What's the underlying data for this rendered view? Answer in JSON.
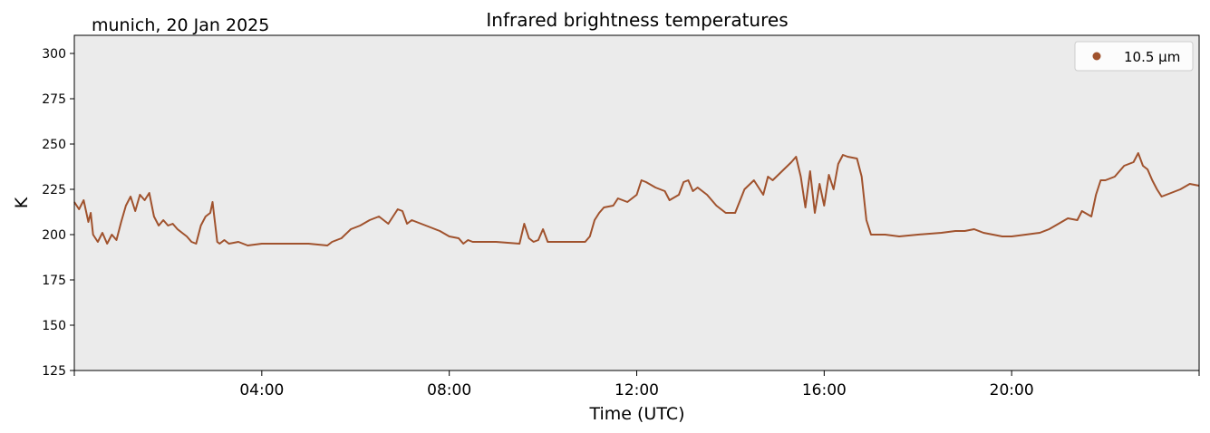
{
  "chart_data": {
    "type": "line",
    "title": "Infrared brightness temperatures",
    "subtitle": "munich, 20 Jan 2025",
    "xlabel": "Time (UTC)",
    "ylabel": "K",
    "xlim_hours": [
      0,
      24
    ],
    "ylim": [
      125,
      310
    ],
    "yticks": [
      125,
      150,
      175,
      200,
      225,
      250,
      275,
      300
    ],
    "xticks": [
      {
        "hour": 4,
        "label": "04:00"
      },
      {
        "hour": 8,
        "label": "08:00"
      },
      {
        "hour": 12,
        "label": "12:00"
      },
      {
        "hour": 16,
        "label": "16:00"
      },
      {
        "hour": 20,
        "label": "20:00"
      }
    ],
    "grid": false,
    "legend_position": "top-right",
    "plot_background": "#ebebeb",
    "series": [
      {
        "name": "10.5 µm",
        "color": "#a0522d",
        "points": [
          [
            0.0,
            218
          ],
          [
            0.1,
            214
          ],
          [
            0.2,
            219
          ],
          [
            0.3,
            207
          ],
          [
            0.35,
            212
          ],
          [
            0.4,
            200
          ],
          [
            0.5,
            196
          ],
          [
            0.6,
            201
          ],
          [
            0.7,
            195
          ],
          [
            0.8,
            200
          ],
          [
            0.9,
            197
          ],
          [
            1.0,
            207
          ],
          [
            1.1,
            216
          ],
          [
            1.2,
            221
          ],
          [
            1.3,
            213
          ],
          [
            1.4,
            222
          ],
          [
            1.5,
            219
          ],
          [
            1.6,
            223
          ],
          [
            1.7,
            210
          ],
          [
            1.8,
            205
          ],
          [
            1.9,
            208
          ],
          [
            2.0,
            205
          ],
          [
            2.1,
            206
          ],
          [
            2.2,
            203
          ],
          [
            2.3,
            201
          ],
          [
            2.4,
            199
          ],
          [
            2.5,
            196
          ],
          [
            2.6,
            195
          ],
          [
            2.7,
            205
          ],
          [
            2.8,
            210
          ],
          [
            2.9,
            212
          ],
          [
            2.95,
            218
          ],
          [
            3.0,
            207
          ],
          [
            3.05,
            196
          ],
          [
            3.1,
            195
          ],
          [
            3.2,
            197
          ],
          [
            3.3,
            195
          ],
          [
            3.5,
            196
          ],
          [
            3.7,
            194
          ],
          [
            4.0,
            195
          ],
          [
            4.5,
            195
          ],
          [
            5.0,
            195
          ],
          [
            5.4,
            194
          ],
          [
            5.5,
            196
          ],
          [
            5.7,
            198
          ],
          [
            5.9,
            203
          ],
          [
            6.1,
            205
          ],
          [
            6.3,
            208
          ],
          [
            6.5,
            210
          ],
          [
            6.7,
            206
          ],
          [
            6.8,
            210
          ],
          [
            6.9,
            214
          ],
          [
            7.0,
            213
          ],
          [
            7.1,
            206
          ],
          [
            7.2,
            208
          ],
          [
            7.4,
            206
          ],
          [
            7.6,
            204
          ],
          [
            7.8,
            202
          ],
          [
            8.0,
            199
          ],
          [
            8.2,
            198
          ],
          [
            8.3,
            195
          ],
          [
            8.4,
            197
          ],
          [
            8.5,
            196
          ],
          [
            8.7,
            196
          ],
          [
            9.0,
            196
          ],
          [
            9.5,
            195
          ],
          [
            9.6,
            206
          ],
          [
            9.7,
            198
          ],
          [
            9.8,
            196
          ],
          [
            9.9,
            197
          ],
          [
            10.0,
            203
          ],
          [
            10.1,
            196
          ],
          [
            10.3,
            196
          ],
          [
            10.6,
            196
          ],
          [
            10.9,
            196
          ],
          [
            11.0,
            199
          ],
          [
            11.1,
            208
          ],
          [
            11.2,
            212
          ],
          [
            11.3,
            215
          ],
          [
            11.5,
            216
          ],
          [
            11.6,
            220
          ],
          [
            11.8,
            218
          ],
          [
            12.0,
            222
          ],
          [
            12.1,
            230
          ],
          [
            12.2,
            229
          ],
          [
            12.4,
            226
          ],
          [
            12.6,
            224
          ],
          [
            12.7,
            219
          ],
          [
            12.9,
            222
          ],
          [
            13.0,
            229
          ],
          [
            13.1,
            230
          ],
          [
            13.2,
            224
          ],
          [
            13.3,
            226
          ],
          [
            13.5,
            222
          ],
          [
            13.7,
            216
          ],
          [
            13.9,
            212
          ],
          [
            14.1,
            212
          ],
          [
            14.3,
            225
          ],
          [
            14.5,
            230
          ],
          [
            14.7,
            222
          ],
          [
            14.8,
            232
          ],
          [
            14.9,
            230
          ],
          [
            15.1,
            235
          ],
          [
            15.3,
            240
          ],
          [
            15.4,
            243
          ],
          [
            15.5,
            232
          ],
          [
            15.6,
            215
          ],
          [
            15.7,
            235
          ],
          [
            15.8,
            212
          ],
          [
            15.9,
            228
          ],
          [
            16.0,
            216
          ],
          [
            16.1,
            233
          ],
          [
            16.2,
            225
          ],
          [
            16.3,
            239
          ],
          [
            16.4,
            244
          ],
          [
            16.5,
            243
          ],
          [
            16.7,
            242
          ],
          [
            16.8,
            232
          ],
          [
            16.9,
            208
          ],
          [
            17.0,
            200
          ],
          [
            17.3,
            200
          ],
          [
            17.6,
            199
          ],
          [
            18.0,
            200
          ],
          [
            18.5,
            201
          ],
          [
            18.8,
            202
          ],
          [
            19.0,
            202
          ],
          [
            19.2,
            203
          ],
          [
            19.4,
            201
          ],
          [
            19.6,
            200
          ],
          [
            19.8,
            199
          ],
          [
            20.0,
            199
          ],
          [
            20.3,
            200
          ],
          [
            20.6,
            201
          ],
          [
            20.8,
            203
          ],
          [
            21.0,
            206
          ],
          [
            21.2,
            209
          ],
          [
            21.4,
            208
          ],
          [
            21.5,
            213
          ],
          [
            21.7,
            210
          ],
          [
            21.8,
            222
          ],
          [
            21.9,
            230
          ],
          [
            22.0,
            230
          ],
          [
            22.2,
            232
          ],
          [
            22.4,
            238
          ],
          [
            22.6,
            240
          ],
          [
            22.7,
            245
          ],
          [
            22.8,
            238
          ],
          [
            22.9,
            236
          ],
          [
            23.0,
            230
          ],
          [
            23.1,
            225
          ],
          [
            23.2,
            221
          ],
          [
            23.4,
            223
          ],
          [
            23.6,
            225
          ],
          [
            23.8,
            228
          ],
          [
            24.0,
            227
          ]
        ]
      }
    ]
  }
}
